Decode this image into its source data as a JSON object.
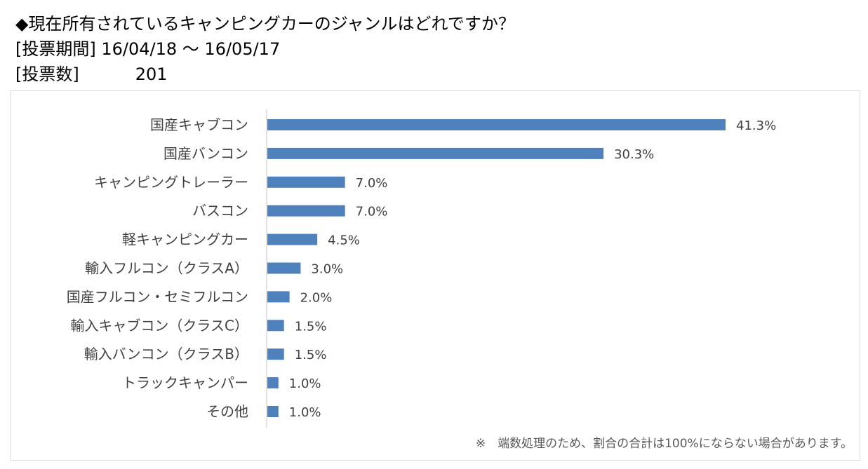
{
  "header": {
    "question": "◆現在所有されているキャンピングカーのジャンルはどれですか？",
    "period_label": "[投票期間]",
    "period_value": "16/04/18 ～ 16/05/17",
    "votes_label": "[投票数]",
    "votes_value": "201"
  },
  "footnote": "※　端数処理のため、割合の合計は100%にならない場合があります。",
  "colors": {
    "bar": "#4f81bd",
    "axis": "#d9d9d9",
    "text": "#404040"
  },
  "chart_data": {
    "type": "bar",
    "orientation": "horizontal",
    "categories": [
      "国産キャブコン",
      "国産バンコン",
      "キャンピングトレーラー",
      "バスコン",
      "軽キャンピングカー",
      "輸入フルコン（クラスA）",
      "国産フルコン・セミフルコン",
      "輸入キャブコン（クラスC）",
      "輸入バンコン（クラスB）",
      "トラックキャンパー",
      "その他"
    ],
    "values": [
      41.3,
      30.3,
      7.0,
      7.0,
      4.5,
      3.0,
      2.0,
      1.5,
      1.5,
      1.0,
      1.0
    ],
    "value_labels": [
      "41.3%",
      "30.3%",
      "7.0%",
      "7.0%",
      "4.5%",
      "3.0%",
      "2.0%",
      "1.5%",
      "1.5%",
      "1.0%",
      "1.0%"
    ],
    "unit": "%",
    "grid": false,
    "legend": "none",
    "xlim": [
      0,
      45
    ]
  }
}
